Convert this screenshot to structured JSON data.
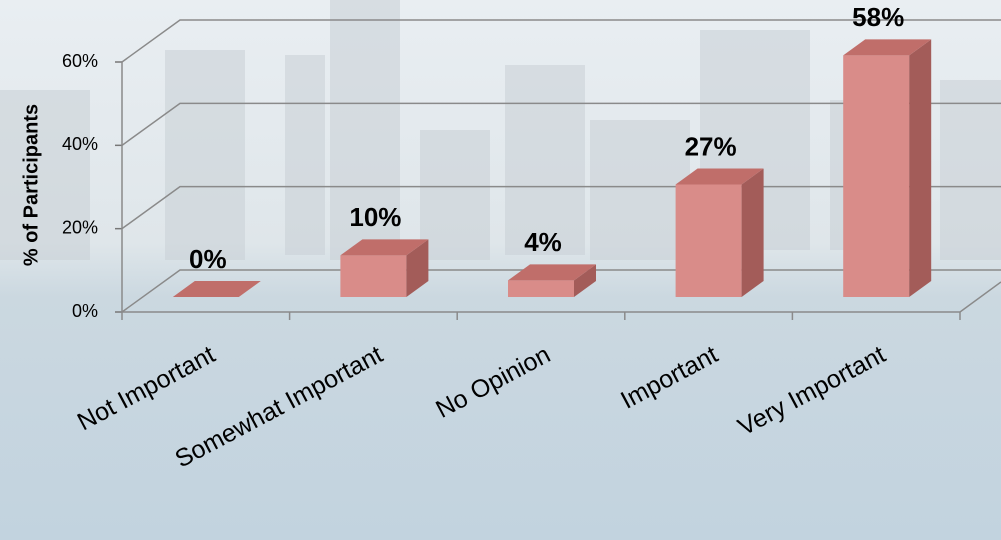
{
  "chart_data": {
    "type": "bar3d",
    "y_label": "% of Participants",
    "categories": [
      "Not Important",
      "Somewhat Important",
      "No Opinion",
      "Important",
      "Very Important"
    ],
    "values": [
      0,
      10,
      4,
      27,
      58
    ],
    "value_labels": [
      "0%",
      "10%",
      "4%",
      "27%",
      "58%"
    ],
    "color": "#d98c89",
    "ylim": [
      0,
      60
    ],
    "yticks": [
      {
        "value": 0,
        "label": "0%"
      },
      {
        "value": 20,
        "label": "20%"
      },
      {
        "value": 40,
        "label": "40%"
      },
      {
        "value": 60,
        "label": "60%"
      }
    ],
    "grid": true
  }
}
